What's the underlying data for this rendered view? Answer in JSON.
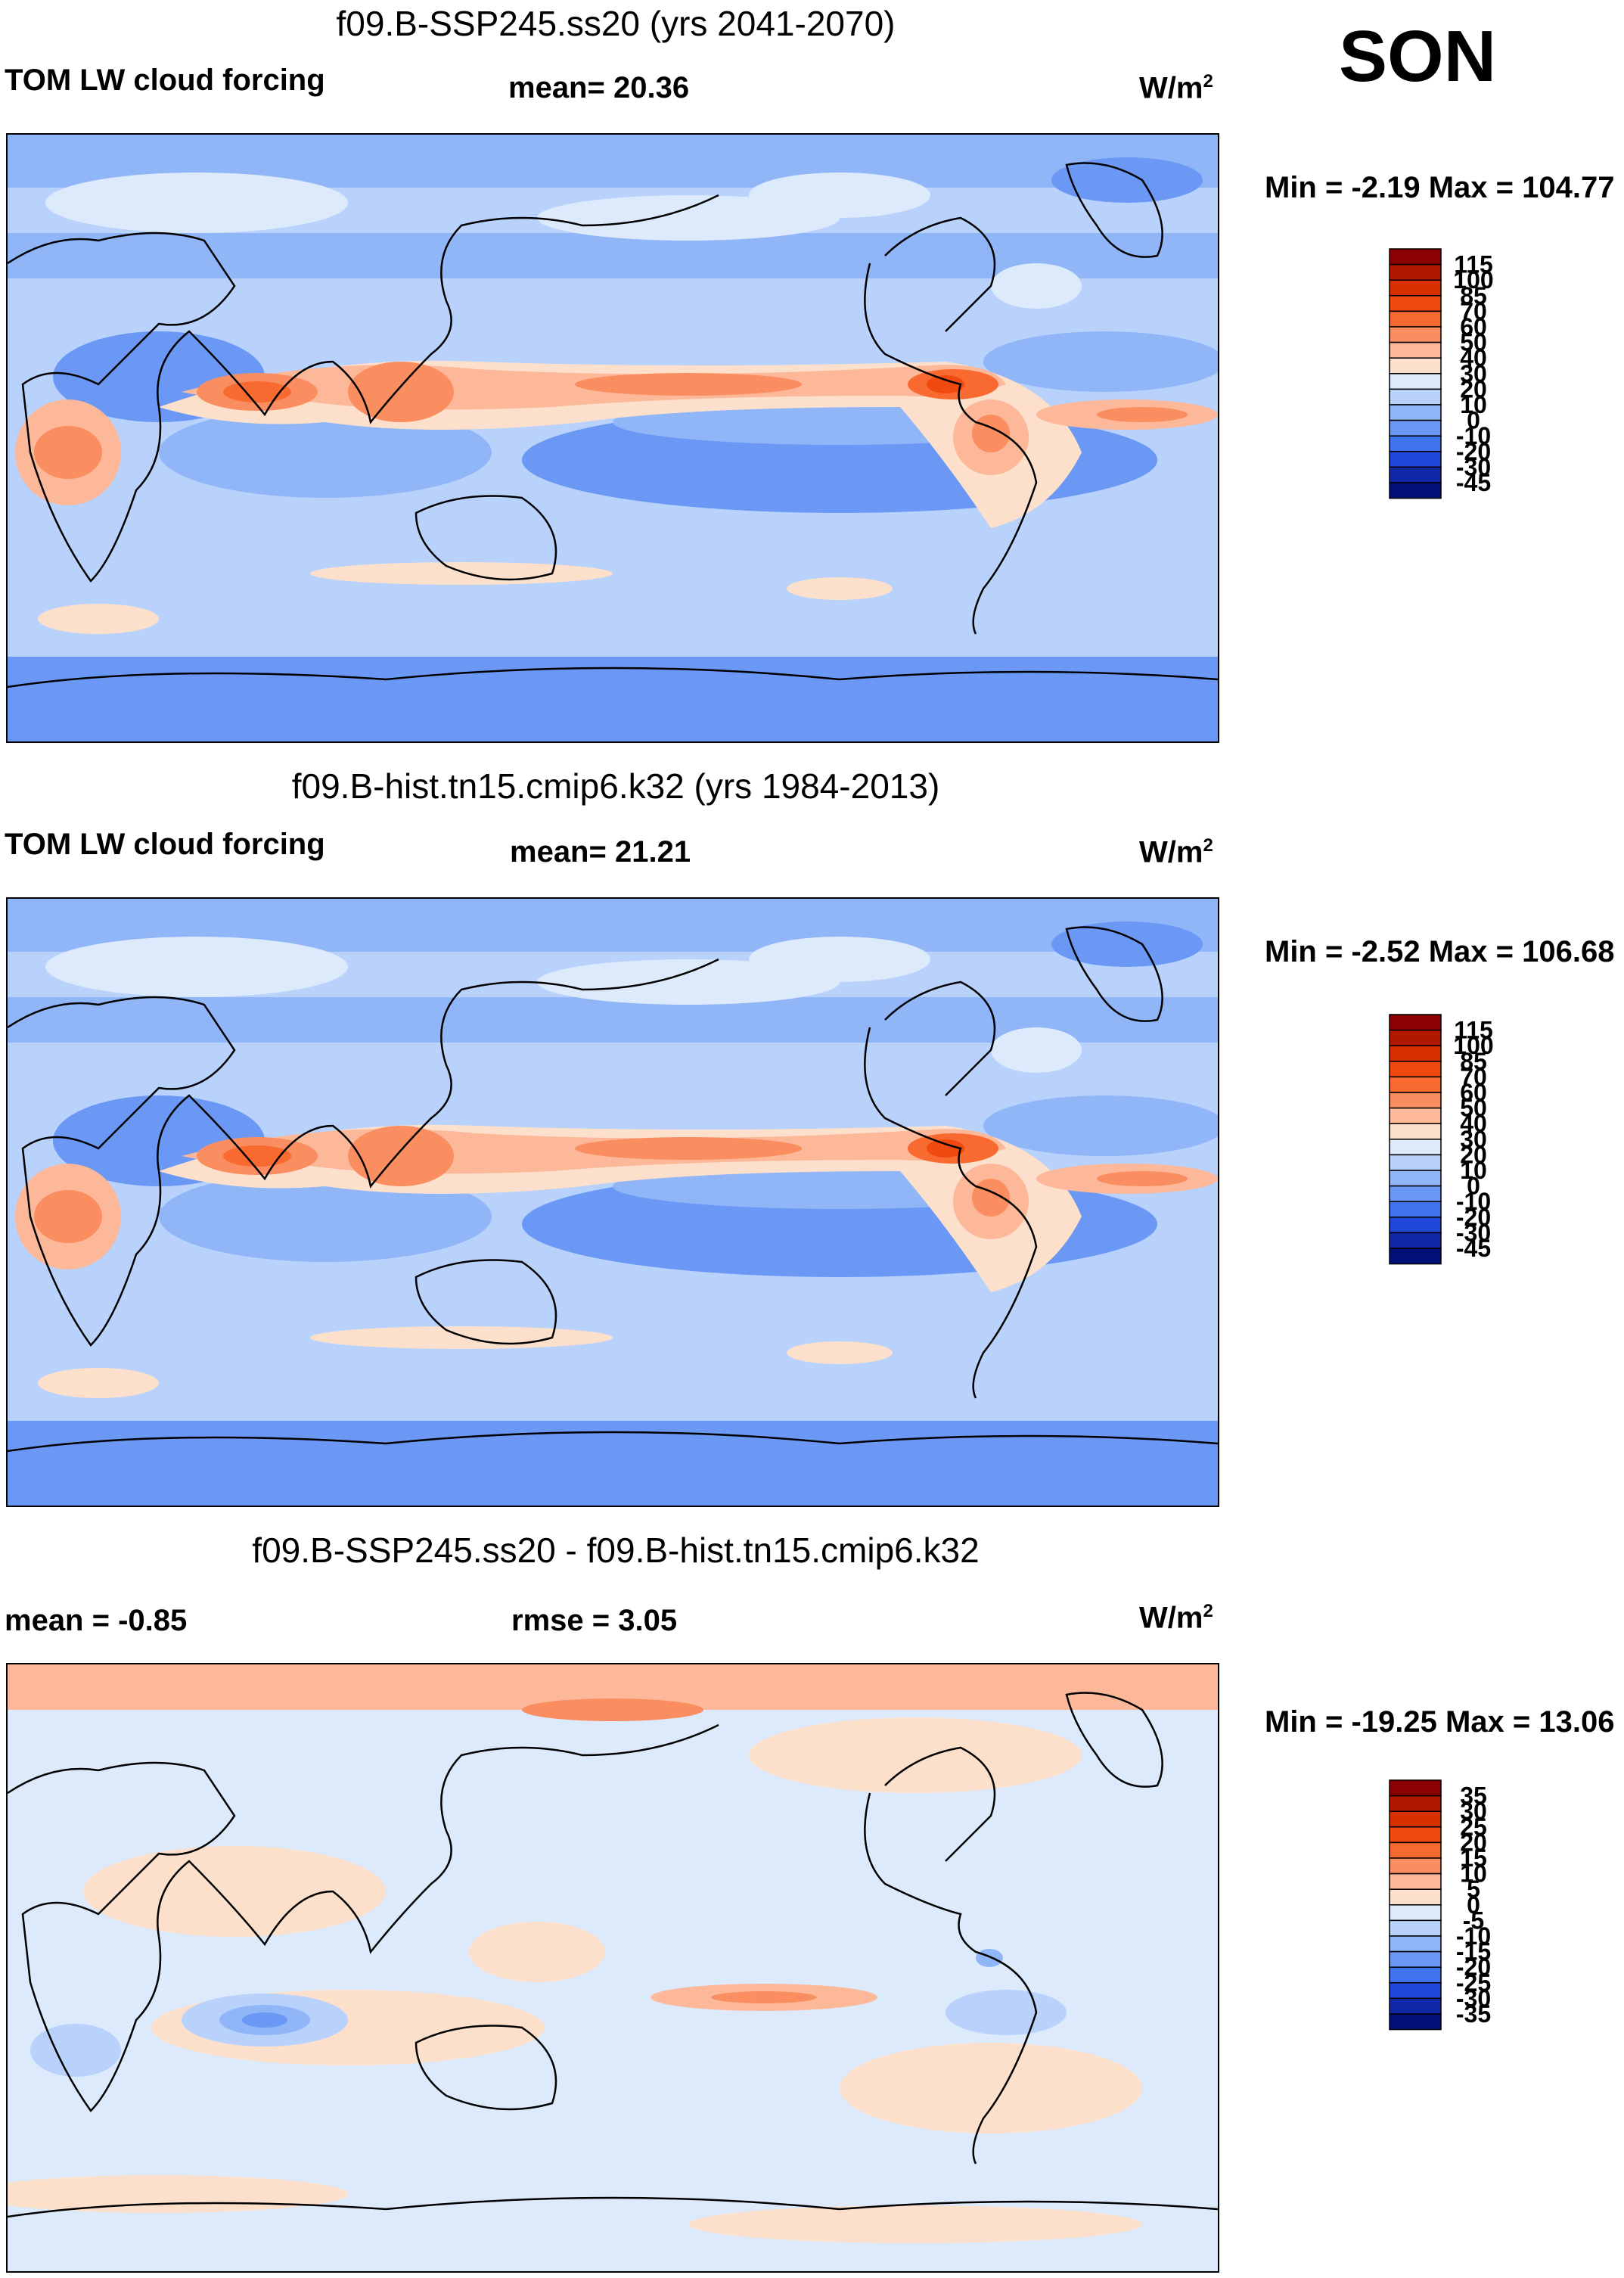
{
  "season": "SON",
  "panels": [
    {
      "title": "f09.B-SSP245.ss20 (yrs 2041-2070)",
      "left_label": "TOM LW cloud forcing",
      "mid_label": "mean=  20.36",
      "units_base": "W/m",
      "units_exp": "2",
      "minmax": "Min =  -2.19 Max = 104.77",
      "colorbar": {
        "levels": [
          "115",
          "100",
          "85",
          "70",
          "60",
          "50",
          "40",
          "30",
          "20",
          "10",
          "0",
          "-10",
          "-20",
          "-30",
          "-45"
        ],
        "colors": [
          "#8B0000",
          "#B01800",
          "#D83000",
          "#F04A10",
          "#F86A30",
          "#FA8E60",
          "#FCB898",
          "#FCE0CC",
          "#DCEAFC",
          "#B8D2FC",
          "#90B6F8",
          "#6A98F4",
          "#3E72EE",
          "#2048D8",
          "#1028A8",
          "#001078"
        ]
      },
      "style": "mean"
    },
    {
      "title": "f09.B-hist.tn15.cmip6.k32 (yrs 1984-2013)",
      "left_label": "TOM LW cloud forcing",
      "mid_label": "mean=  21.21",
      "units_base": "W/m",
      "units_exp": "2",
      "minmax": "Min =  -2.52 Max = 106.68",
      "colorbar": {
        "levels": [
          "115",
          "100",
          "85",
          "70",
          "60",
          "50",
          "40",
          "30",
          "20",
          "10",
          "0",
          "-10",
          "-20",
          "-30",
          "-45"
        ],
        "colors": [
          "#8B0000",
          "#B01800",
          "#D83000",
          "#F04A10",
          "#F86A30",
          "#FA8E60",
          "#FCB898",
          "#FCE0CC",
          "#DCEAFC",
          "#B8D2FC",
          "#90B6F8",
          "#6A98F4",
          "#3E72EE",
          "#2048D8",
          "#1028A8",
          "#001078"
        ]
      },
      "style": "mean"
    },
    {
      "title": "f09.B-SSP245.ss20 - f09.B-hist.tn15.cmip6.k32",
      "left_label": "mean =  -0.85",
      "mid_label": "rmse =    3.05",
      "units_base": "W/m",
      "units_exp": "2",
      "minmax": "Min = -19.25 Max =  13.06",
      "colorbar": {
        "levels": [
          "35",
          "30",
          "25",
          "20",
          "15",
          "10",
          "5",
          "0",
          "-5",
          "-10",
          "-15",
          "-20",
          "-25",
          "-30",
          "-35"
        ],
        "colors": [
          "#8B0000",
          "#B01800",
          "#D83000",
          "#F04A10",
          "#F86A30",
          "#FA8E60",
          "#FCB898",
          "#FCE0CC",
          "#DCEAFC",
          "#B8D2FC",
          "#90B6F8",
          "#6A98F4",
          "#3E72EE",
          "#2048D8",
          "#1028A8",
          "#001078"
        ]
      },
      "style": "diff"
    }
  ]
}
